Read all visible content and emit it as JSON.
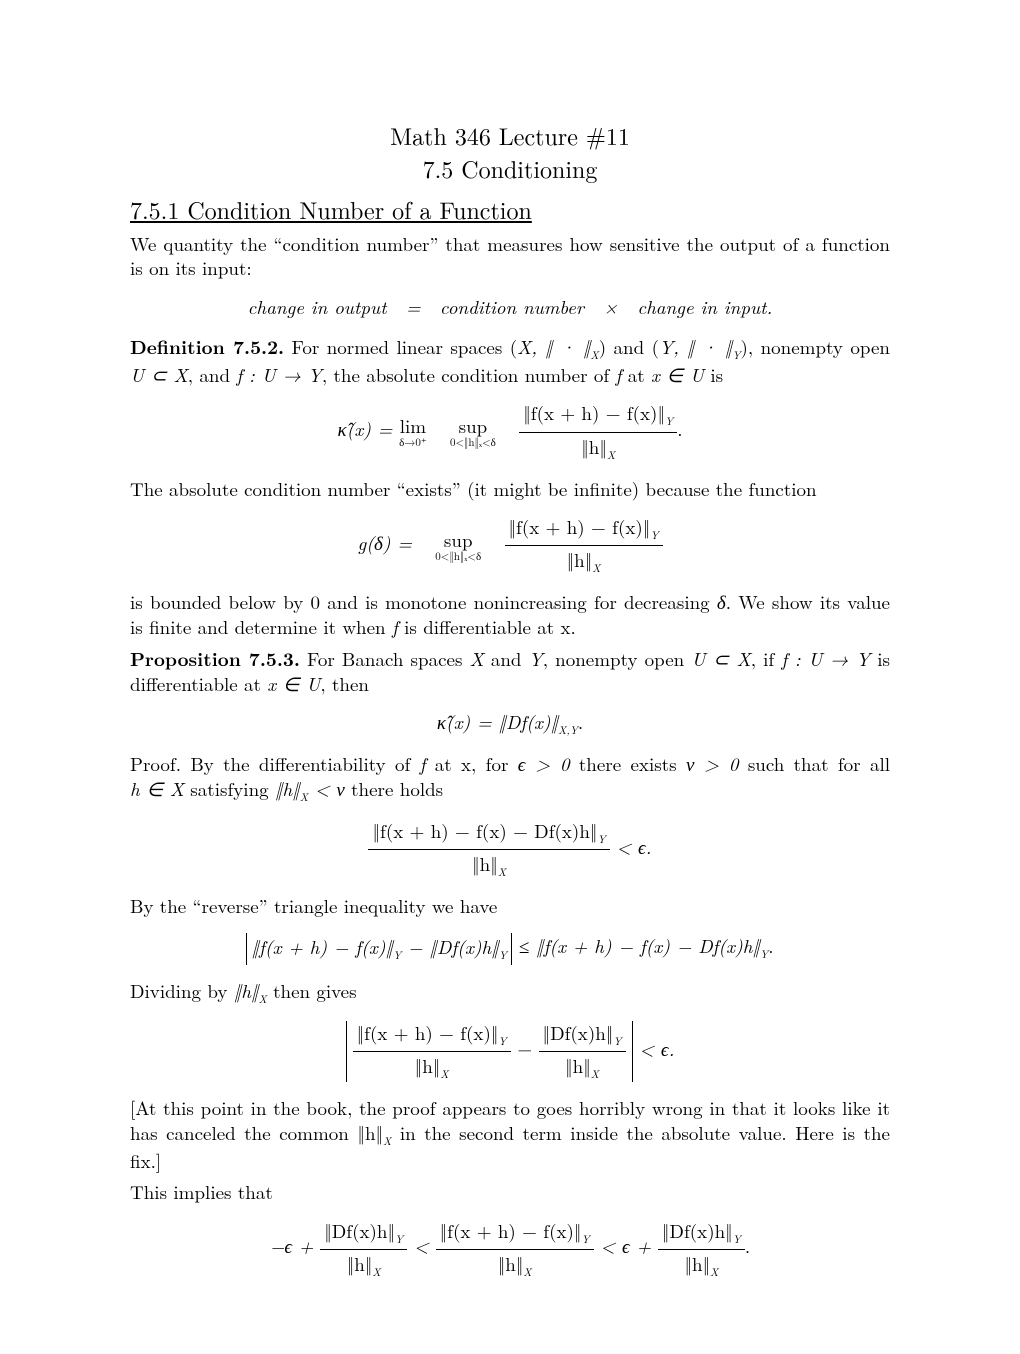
{
  "title_line1": "Math 346 Lecture #11",
  "title_line2": "7.5 Conditioning",
  "section_heading": "7.5.1 Condition Number of a Function",
  "intro_para": "We quantity the “condition number” that measures how sensitive the output of a function is on its input:",
  "relation_eq": "change in output  =  condition number  ×  change in input.",
  "def_label": "Definition 7.5.2.",
  "def_text_1": "For normed linear spaces (",
  "def_text_2": ") and (",
  "def_text_3": "), nonempty open ",
  "def_text_4": ", and ",
  "def_text_5": ", the absolute condition number of ",
  "def_text_6": " at ",
  "def_text_7": " is",
  "X_norm": "X, ‖ · ‖",
  "X_sub": "X",
  "Y_norm": "Y, ‖ · ‖",
  "Y_sub": "Y",
  "U_subset": "U ⊂ X",
  "f_map": "f : U → Y",
  "f_sym": "f",
  "x_in_U": "x ∈ U",
  "kappa_eq_lhs": "κ̂(x) =",
  "lim_top": "lim",
  "lim_bot": "δ→0⁺",
  "sup_top": "sup",
  "sup_bot": "0<‖h‖ₓ<δ",
  "frac1_num": "‖f(x + h) − f(x)‖",
  "frac1_num_sub": "Y",
  "frac1_den": "‖h‖",
  "frac1_den_sub": "X",
  "period": ".",
  "exists_para": "The absolute condition number “exists” (it might be infinite) because the function",
  "g_eq_lhs": "g(δ) =",
  "bounded_para_1": "is bounded below by 0 and is monotone nonincreasing for decreasing ",
  "delta_sym": "δ",
  "bounded_para_2": ". We show its value is finite and determine it when ",
  "bounded_para_3": " is differentiable at x.",
  "prop_label": "Proposition 7.5.3.",
  "prop_text_1": "For Banach spaces ",
  "X_sym": "X",
  "prop_text_2": " and ",
  "Y_sym": "Y",
  "prop_text_3": ", nonempty open ",
  "prop_text_4": ", if ",
  "prop_text_5": " is differentiable at ",
  "prop_text_6": ", then",
  "kappa_result": "κ̂(x) = ‖Df(x)‖",
  "kappa_result_sub": "X,Y",
  "proof_word": "Proof.",
  "proof_text_1": " By the differentiability of ",
  "proof_text_2": " at x, for ",
  "eps_gt_0": "ϵ > 0",
  "proof_text_3": " there exists ",
  "nu_gt_0": "ν > 0",
  "proof_text_4": " such that for all ",
  "h_in_X": "h ∈ X",
  "proof_text_5": " satisfying ",
  "h_lt_nu": "‖h‖",
  "h_lt_nu_tail": " < ν",
  "proof_text_6": " there holds",
  "diff_frac_num": "‖f(x + h) − f(x) − Df(x)h‖",
  "lt_eps": " < ϵ.",
  "reverse_para": "By the “reverse” triangle inequality we have",
  "rev_ineq_left": "‖f(x + h) − f(x)‖",
  "rev_minus": " − ‖Df(x)h‖",
  "rev_leq": " ≤ ‖f(x + h) − f(x) − Df(x)h‖",
  "divide_para_1": "Dividing by ",
  "norm_h_X": "‖h‖",
  "divide_para_2": " then gives",
  "df_frac_num": "‖Df(x)h‖",
  "bracket_para": "[At this point in the book, the proof appears to goes horribly wrong in that it looks like it has canceled the common ‖h‖",
  "bracket_para_tail": " in the second term inside the absolute value. Here is the fix.]",
  "implies_para": "This implies that",
  "neg_eps": "−ϵ + ",
  "lt_sign": " < ",
  "eps_plus": " < ϵ + "
}
